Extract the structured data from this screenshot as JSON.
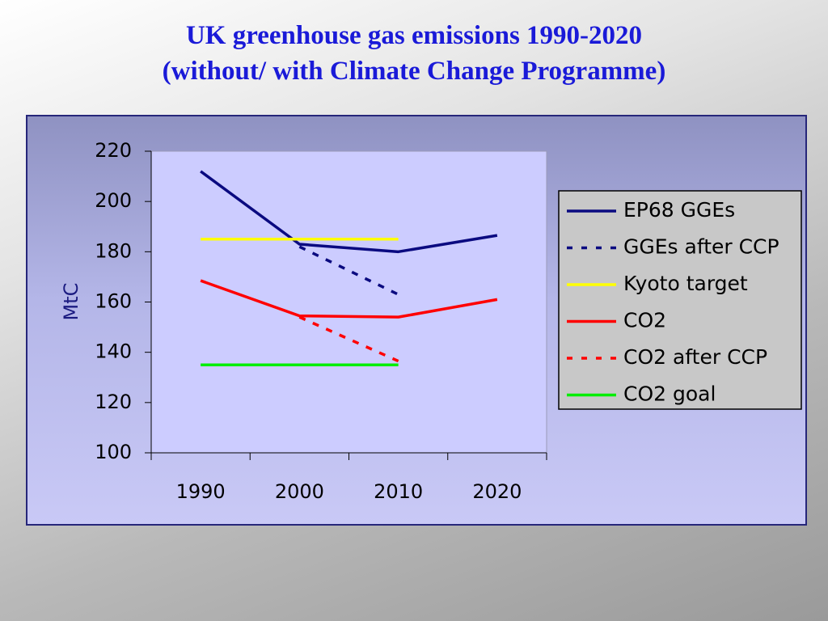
{
  "title": {
    "line1": "UK greenhouse gas emissions 1990-2020",
    "line2": "(without/ with Climate Change Programme)"
  },
  "chart_data": {
    "type": "line",
    "title": "UK greenhouse gas emissions 1990-2020 (without/ with Climate Change Programme)",
    "ylabel": "MtC",
    "xlabel": "",
    "ylim": [
      100,
      220
    ],
    "yticks": [
      100,
      120,
      140,
      160,
      180,
      200,
      220
    ],
    "xticks": [
      "1990",
      "2000",
      "2010",
      "2020"
    ],
    "legend_position": "right",
    "grid": false,
    "series": [
      {
        "name": "EP68 GGEs",
        "color": "#0a0a80",
        "dash": "solid",
        "x": [
          1990,
          2000,
          2010,
          2020
        ],
        "y": [
          212,
          183,
          180,
          186.5
        ]
      },
      {
        "name": "GGEs after CCP",
        "color": "#0a0a80",
        "dash": "dotted",
        "x": [
          2000,
          2010
        ],
        "y": [
          182,
          163
        ]
      },
      {
        "name": "Kyoto target",
        "color": "#ffff00",
        "dash": "solid",
        "x": [
          1990,
          2010
        ],
        "y": [
          185,
          185
        ]
      },
      {
        "name": "CO2",
        "color": "#ff0000",
        "dash": "solid",
        "x": [
          1990,
          2000,
          2010,
          2020
        ],
        "y": [
          168.5,
          154.5,
          154,
          161
        ]
      },
      {
        "name": "CO2 after CCP",
        "color": "#ff0000",
        "dash": "dotted",
        "x": [
          2000,
          2010
        ],
        "y": [
          154,
          136.5
        ]
      },
      {
        "name": "CO2 goal",
        "color": "#00ee00",
        "dash": "solid",
        "x": [
          1990,
          2010
        ],
        "y": [
          135,
          135
        ]
      }
    ]
  }
}
